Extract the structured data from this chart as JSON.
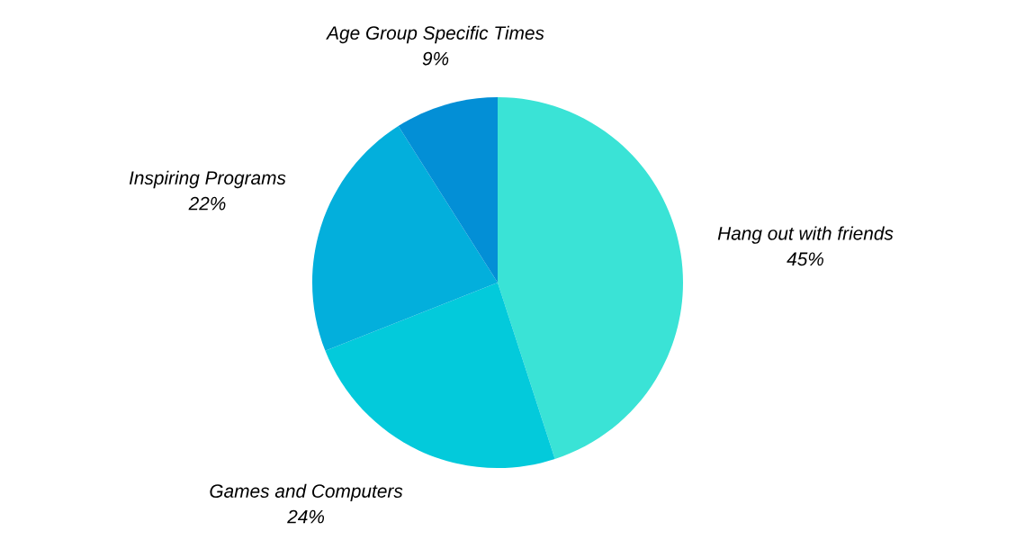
{
  "chart_data": {
    "type": "pie",
    "categories": [
      "Hang out with friends",
      "Games and Computers",
      "Inspiring Programs",
      "Age Group Specific Times"
    ],
    "values": [
      45,
      24,
      22,
      9
    ],
    "value_labels": [
      "45%",
      "24%",
      "22%",
      "9%"
    ],
    "colors": [
      "#3ae3d6",
      "#03cadb",
      "#03afdc",
      "#038fd6"
    ],
    "legend": false
  }
}
